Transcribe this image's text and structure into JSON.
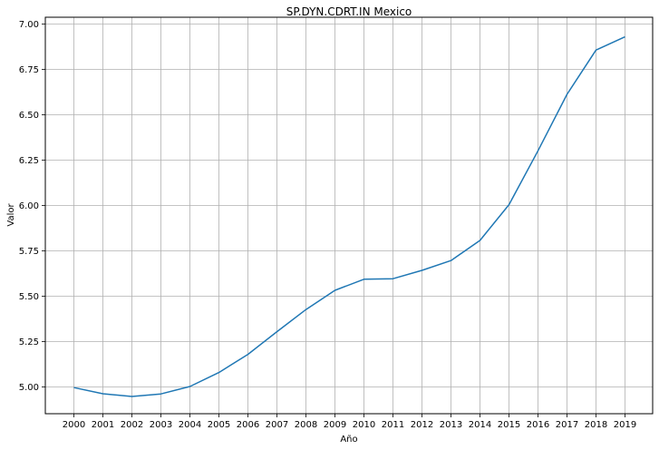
{
  "chart_data": {
    "type": "line",
    "title": "SP.DYN.CDRT.IN Mexico",
    "xlabel": "Año",
    "ylabel": "Valor",
    "x": [
      "2000",
      "2001",
      "2002",
      "2003",
      "2004",
      "2005",
      "2006",
      "2007",
      "2008",
      "2009",
      "2010",
      "2011",
      "2012",
      "2013",
      "2014",
      "2015",
      "2016",
      "2017",
      "2018",
      "2019"
    ],
    "series": [
      {
        "values": [
          4.997,
          4.963,
          4.948,
          4.962,
          5.003,
          5.08,
          5.18,
          5.305,
          5.427,
          5.533,
          5.594,
          5.597,
          5.643,
          5.697,
          5.808,
          6.005,
          6.302,
          6.613,
          6.857,
          6.93
        ],
        "color": "#1f77b4"
      }
    ],
    "ylim": [
      4.853,
      7.038
    ],
    "yticks": [
      "5.00",
      "5.25",
      "5.50",
      "5.75",
      "6.00",
      "6.25",
      "6.50",
      "6.75",
      "7.00"
    ],
    "grid": true,
    "legend": "none"
  }
}
